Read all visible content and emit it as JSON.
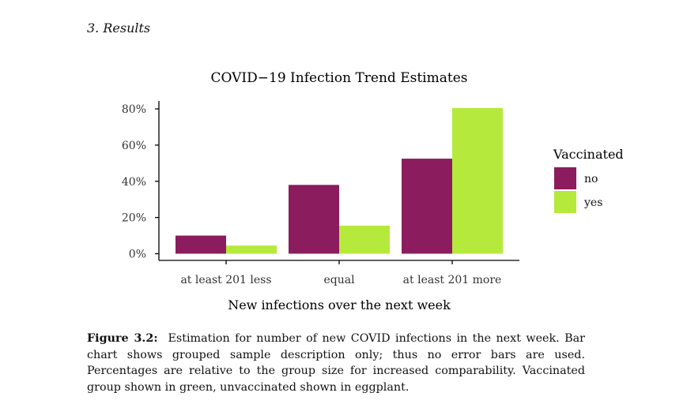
{
  "section": {
    "heading": "3.  Results"
  },
  "chart_data": {
    "type": "bar",
    "title": "COVID−19 Infection Trend Estimates",
    "xlabel": "New infections over the next week",
    "ylabel": "",
    "categories": [
      "at least 201 less",
      "equal",
      "at least 201 more"
    ],
    "series": [
      {
        "name": "no",
        "color": "#8b1c5e",
        "values": [
          10,
          38,
          52.5
        ]
      },
      {
        "name": "yes",
        "color": "#b5ea3c",
        "values": [
          4.5,
          15.5,
          80.5
        ]
      }
    ],
    "ylim": [
      0,
      84
    ],
    "yticks": [
      0,
      20,
      40,
      60,
      80
    ],
    "ytick_labels": [
      "0%",
      "20%",
      "40%",
      "60%",
      "80%"
    ],
    "legend": {
      "title": "Vaccinated",
      "position": "right"
    }
  },
  "caption": {
    "label": "Figure 3.2:",
    "text": "Estimation for number of new COVID infections in the next week. Bar chart shows grouped sample description only; thus no error bars are used. Percentages are relative to the group size for increased comparability. Vaccinated group shown in green, unvaccinated shown in eggplant."
  }
}
